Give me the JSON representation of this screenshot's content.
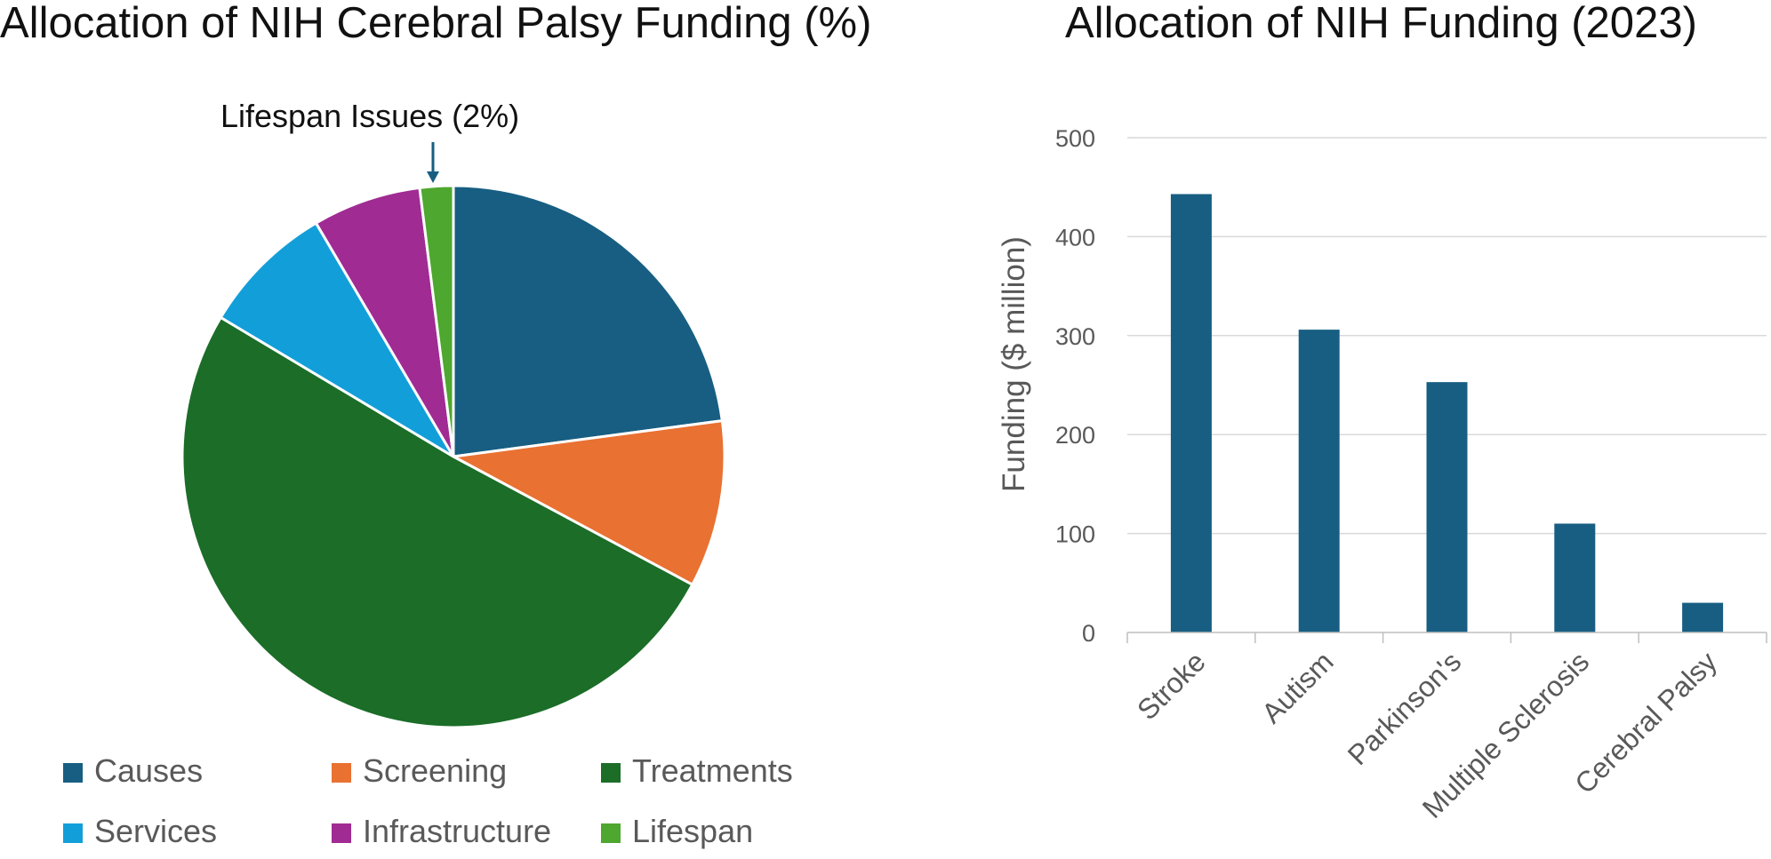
{
  "chart_data": [
    {
      "type": "pie",
      "title": "Allocation of NIH Cerebral Palsy Funding (%)",
      "unit": "%",
      "slices": [
        {
          "label": "Causes",
          "value": 23,
          "color": "#175E82"
        },
        {
          "label": "Screening",
          "value": 10,
          "color": "#E97132"
        },
        {
          "label": "Treatments",
          "value": 51,
          "color": "#1B6D28"
        },
        {
          "label": "Services",
          "value": 8,
          "color": "#129FD9"
        },
        {
          "label": "Infrastructure",
          "value": 6.5,
          "color": "#A02B93"
        },
        {
          "label": "Lifespan",
          "value": 2,
          "color": "#4EA72E"
        }
      ],
      "annotation": {
        "text": "Lifespan Issues (2%)",
        "target": "Lifespan"
      },
      "legend": "bottom"
    },
    {
      "type": "bar",
      "title": "Allocation of NIH Funding (2023)",
      "categories": [
        "Stroke",
        "Autism",
        "Parkinson's",
        "Multiple Sclerosis",
        "Cerebral Palsy"
      ],
      "values": [
        443,
        306,
        253,
        110,
        30
      ],
      "xlabel": "",
      "ylabel": "Funding ($ million)",
      "ylim": [
        0,
        500
      ],
      "yticks": [
        0,
        100,
        200,
        300,
        400,
        500
      ],
      "bar_color": "#175E82",
      "grid": true
    }
  ]
}
